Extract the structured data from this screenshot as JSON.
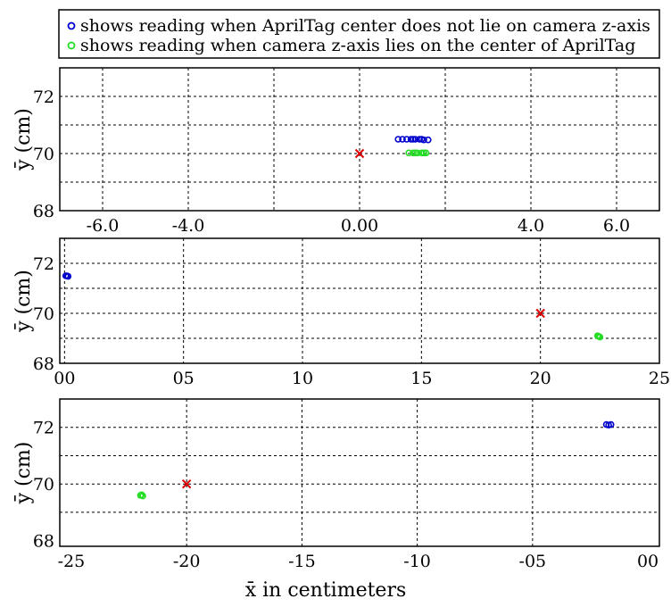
{
  "legend": {
    "entries": [
      {
        "marker_color": "#0000cc",
        "text": "shows reading when AprilTag center does not lie on camera z-axis"
      },
      {
        "marker_color": "#22dd22",
        "text": "shows reading when camera z-axis lies on the center of AprilTag"
      }
    ]
  },
  "xlabel_common": "x̄ in centimeters",
  "colors": {
    "blue": "#0000cc",
    "green": "#22dd22",
    "red": "#dd0000"
  },
  "chart_data": [
    {
      "type": "scatter",
      "ylabel": "ȳ (cm)",
      "xlim": [
        -7.0,
        7.0
      ],
      "ylim": [
        68,
        73
      ],
      "grid": true,
      "x_ticks": [
        -6,
        -4,
        0,
        4,
        6
      ],
      "x_tick_labels": [
        "-6.0",
        "-4.0",
        "0.00",
        "4.0",
        "6.0"
      ],
      "x_grid": [
        -6,
        -4,
        -2,
        0,
        2,
        4,
        6
      ],
      "y_ticks": [
        68,
        70,
        72
      ],
      "y_grid": [
        69,
        70,
        71,
        72
      ],
      "series": [
        {
          "color": "#0000cc",
          "marker": "circle",
          "points": [
            [
              0.9,
              70.5
            ],
            [
              1.0,
              70.5
            ],
            [
              1.1,
              70.5
            ],
            [
              1.2,
              70.5
            ],
            [
              1.3,
              70.5
            ],
            [
              1.4,
              70.5
            ],
            [
              1.5,
              70.48
            ],
            [
              1.6,
              70.48
            ],
            [
              1.25,
              70.5
            ],
            [
              1.45,
              70.5
            ]
          ]
        },
        {
          "color": "#22dd22",
          "marker": "circle",
          "points": [
            [
              1.15,
              70.02
            ],
            [
              1.25,
              70.02
            ],
            [
              1.35,
              70.02
            ],
            [
              1.45,
              70.02
            ],
            [
              1.55,
              70.02
            ],
            [
              1.3,
              70.02
            ],
            [
              1.5,
              70.02
            ]
          ]
        },
        {
          "color": "#dd0000",
          "marker": "x",
          "points": [
            [
              0.0,
              70.0
            ]
          ]
        }
      ]
    },
    {
      "type": "scatter",
      "ylabel": "ȳ (cm)",
      "xlim": [
        -0.2,
        25.0
      ],
      "ylim": [
        68,
        73
      ],
      "grid": true,
      "x_ticks": [
        0,
        5,
        10,
        15,
        20,
        25
      ],
      "x_tick_labels": [
        "00",
        "05",
        "10",
        "15",
        "20",
        "25"
      ],
      "x_grid": [
        0,
        5,
        10,
        15,
        20
      ],
      "y_ticks": [
        68,
        70,
        72
      ],
      "y_grid": [
        69,
        70,
        71,
        72
      ],
      "series": [
        {
          "color": "#0000cc",
          "marker": "circle",
          "points": [
            [
              0.05,
              71.5
            ],
            [
              0.15,
              71.48
            ],
            [
              0.1,
              71.5
            ]
          ]
        },
        {
          "color": "#22dd22",
          "marker": "circle",
          "points": [
            [
              22.4,
              69.1
            ],
            [
              22.5,
              69.05
            ],
            [
              22.45,
              69.08
            ]
          ]
        },
        {
          "color": "#dd0000",
          "marker": "x",
          "points": [
            [
              20.0,
              70.0
            ]
          ]
        }
      ]
    },
    {
      "type": "scatter",
      "ylabel": "ȳ (cm)",
      "xlim": [
        -25.5,
        0.5
      ],
      "ylim": [
        67.8,
        73.0
      ],
      "grid": true,
      "x_ticks": [
        -25,
        -20,
        -15,
        -10,
        -5,
        0
      ],
      "x_tick_labels": [
        "-25",
        "-20",
        "-15",
        "-10",
        "-05",
        "00"
      ],
      "x_grid": [
        -20,
        -15,
        -10,
        -5
      ],
      "y_ticks": [
        68,
        70,
        72
      ],
      "y_grid": [
        69,
        70,
        71,
        72
      ],
      "series": [
        {
          "color": "#0000cc",
          "marker": "circle",
          "points": [
            [
              -1.8,
              72.1
            ],
            [
              -1.6,
              72.1
            ],
            [
              -1.7,
              72.08
            ]
          ]
        },
        {
          "color": "#22dd22",
          "marker": "circle",
          "points": [
            [
              -22.0,
              69.6
            ],
            [
              -21.9,
              69.58
            ],
            [
              -21.95,
              69.62
            ]
          ]
        },
        {
          "color": "#dd0000",
          "marker": "x",
          "points": [
            [
              -20.0,
              70.0
            ]
          ]
        }
      ]
    }
  ]
}
